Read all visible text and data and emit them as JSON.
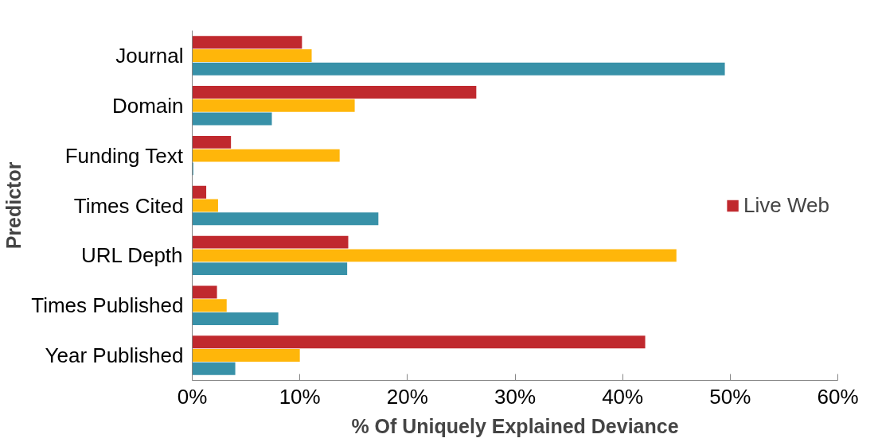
{
  "chart_data": {
    "type": "bar",
    "orientation": "horizontal",
    "xlabel": "% Of Uniquely Explained Deviance",
    "ylabel": "Predictor",
    "categories": [
      "Journal",
      "Domain",
      "Funding Text",
      "Times Cited",
      "URL Depth",
      "Times Published",
      "Year Published"
    ],
    "series": [
      {
        "name": "Live Web",
        "color": "#c0292e",
        "values": [
          10.2,
          26.4,
          3.6,
          1.3,
          14.5,
          2.3,
          42.1
        ]
      },
      {
        "color": "#ffb60a",
        "values": [
          11.1,
          15.1,
          13.7,
          2.4,
          45.0,
          3.2,
          10.0
        ]
      },
      {
        "color": "#3891a8",
        "values": [
          49.5,
          7.4,
          0.1,
          17.3,
          14.4,
          8.0,
          4.0
        ]
      }
    ],
    "xlim": [
      0,
      60
    ],
    "xticks": [
      {
        "value": 0,
        "label": "0%"
      },
      {
        "value": 10,
        "label": "10%"
      },
      {
        "value": 20,
        "label": "20%"
      },
      {
        "value": 30,
        "label": "30%"
      },
      {
        "value": 40,
        "label": "40%"
      },
      {
        "value": 50,
        "label": "50%"
      },
      {
        "value": 60,
        "label": "60%"
      }
    ],
    "grid": false,
    "legend": "right"
  }
}
